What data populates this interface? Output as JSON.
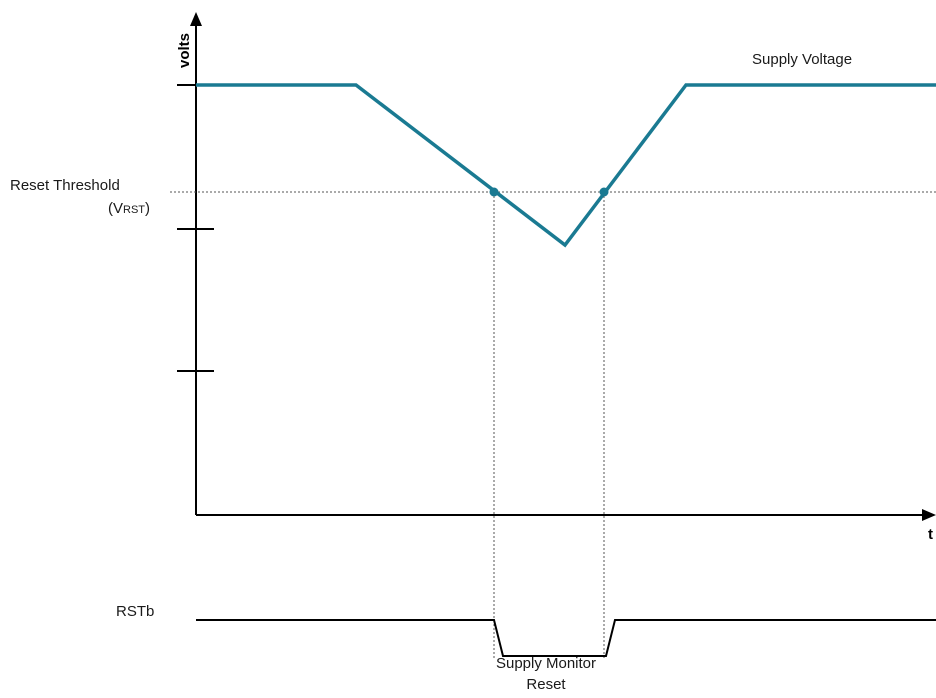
{
  "labels": {
    "y_axis": "volts",
    "x_axis": "t",
    "supply_voltage": "Supply Voltage",
    "reset_threshold": "Reset Threshold",
    "vrst_open": "(V",
    "vrst_sub": "RST",
    "vrst_close": ")",
    "rstb": "RSTb",
    "supply_monitor_line1": "Supply Monitor",
    "supply_monitor_line2": "Reset"
  },
  "colors": {
    "supply_wave": "#1a7a92",
    "axis": "#000000",
    "guide": "#555555"
  }
}
